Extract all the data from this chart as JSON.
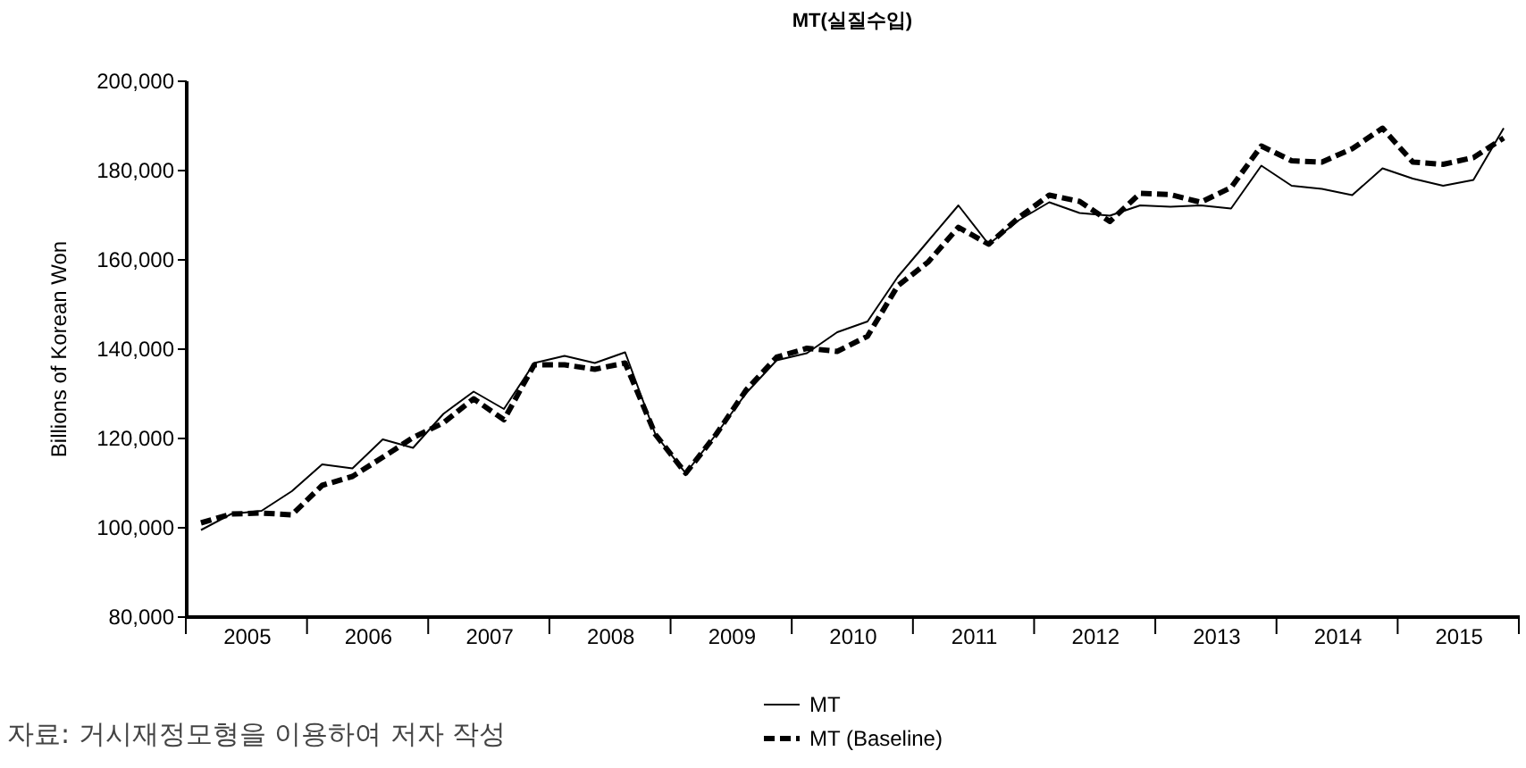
{
  "chart_data": {
    "type": "line",
    "title": "MT(실질수입)",
    "ylabel": "Billions of Korean Won",
    "annotations": [
      "자료: 거시재정모형을 이용하여 저자 작성"
    ],
    "x": [
      2005.125,
      2005.375,
      2005.625,
      2005.875,
      2006.125,
      2006.375,
      2006.625,
      2006.875,
      2007.125,
      2007.375,
      2007.625,
      2007.875,
      2008.125,
      2008.375,
      2008.625,
      2008.875,
      2009.125,
      2009.375,
      2009.625,
      2009.875,
      2010.125,
      2010.375,
      2010.625,
      2010.875,
      2011.125,
      2011.375,
      2011.625,
      2011.875,
      2012.125,
      2012.375,
      2012.625,
      2012.875,
      2013.125,
      2013.375,
      2013.625,
      2013.875,
      2014.125,
      2014.375,
      2014.625,
      2014.875,
      2015.125,
      2015.375,
      2015.625,
      2015.875
    ],
    "xlim": [
      2005,
      2016
    ],
    "xticks": [
      {
        "value": 2005,
        "label": null
      },
      {
        "value": 2005.5,
        "label": "2005"
      },
      {
        "value": 2006,
        "label": null
      },
      {
        "value": 2006.5,
        "label": "2006"
      },
      {
        "value": 2007,
        "label": null
      },
      {
        "value": 2007.5,
        "label": "2007"
      },
      {
        "value": 2008,
        "label": null
      },
      {
        "value": 2008.5,
        "label": "2008"
      },
      {
        "value": 2009,
        "label": null
      },
      {
        "value": 2009.5,
        "label": "2009"
      },
      {
        "value": 2010,
        "label": null
      },
      {
        "value": 2010.5,
        "label": "2010"
      },
      {
        "value": 2011,
        "label": null
      },
      {
        "value": 2011.5,
        "label": "2011"
      },
      {
        "value": 2012,
        "label": null
      },
      {
        "value": 2012.5,
        "label": "2012"
      },
      {
        "value": 2013,
        "label": null
      },
      {
        "value": 2013.5,
        "label": "2013"
      },
      {
        "value": 2014,
        "label": null
      },
      {
        "value": 2014.5,
        "label": "2014"
      },
      {
        "value": 2015,
        "label": null
      },
      {
        "value": 2015.5,
        "label": "2015"
      },
      {
        "value": 2016,
        "label": null
      }
    ],
    "ylim": [
      80000,
      200000
    ],
    "yticks": [
      {
        "value": 80000,
        "label": "80,000"
      },
      {
        "value": 100000,
        "label": "100,000"
      },
      {
        "value": 120000,
        "label": "120,000"
      },
      {
        "value": 140000,
        "label": "140,000"
      },
      {
        "value": 160000,
        "label": "160,000"
      },
      {
        "value": 180000,
        "label": "180,000"
      },
      {
        "value": 200000,
        "label": "200,000"
      }
    ],
    "legend": "bottom",
    "marker": "none",
    "series": [
      {
        "name": "MT",
        "color": "#000000",
        "line_style": "solid",
        "values": [
          99300,
          102900,
          103600,
          108000,
          114000,
          113100,
          119600,
          117700,
          125300,
          130300,
          126400,
          136700,
          138300,
          136700,
          139100,
          120700,
          112000,
          120700,
          130000,
          137300,
          138900,
          143600,
          146000,
          156000,
          164000,
          172000,
          163300,
          168700,
          172700,
          170300,
          169700,
          172000,
          171700,
          172000,
          171300,
          180900,
          176400,
          175700,
          174300,
          180300,
          178000,
          176400,
          177700,
          189300
        ]
      },
      {
        "name": "MT (Baseline)",
        "color": "#000000",
        "line_style": "dashed",
        "values": [
          100900,
          102900,
          103100,
          102700,
          109300,
          111300,
          115600,
          120000,
          123300,
          128700,
          124000,
          136300,
          136300,
          135300,
          136700,
          120700,
          112000,
          120700,
          130700,
          138000,
          140000,
          139300,
          142700,
          154000,
          159300,
          167100,
          163300,
          169300,
          174300,
          172900,
          168400,
          174700,
          174400,
          172700,
          176000,
          185300,
          182000,
          181700,
          184700,
          189300,
          181700,
          181200,
          182700,
          187100
        ]
      }
    ]
  }
}
